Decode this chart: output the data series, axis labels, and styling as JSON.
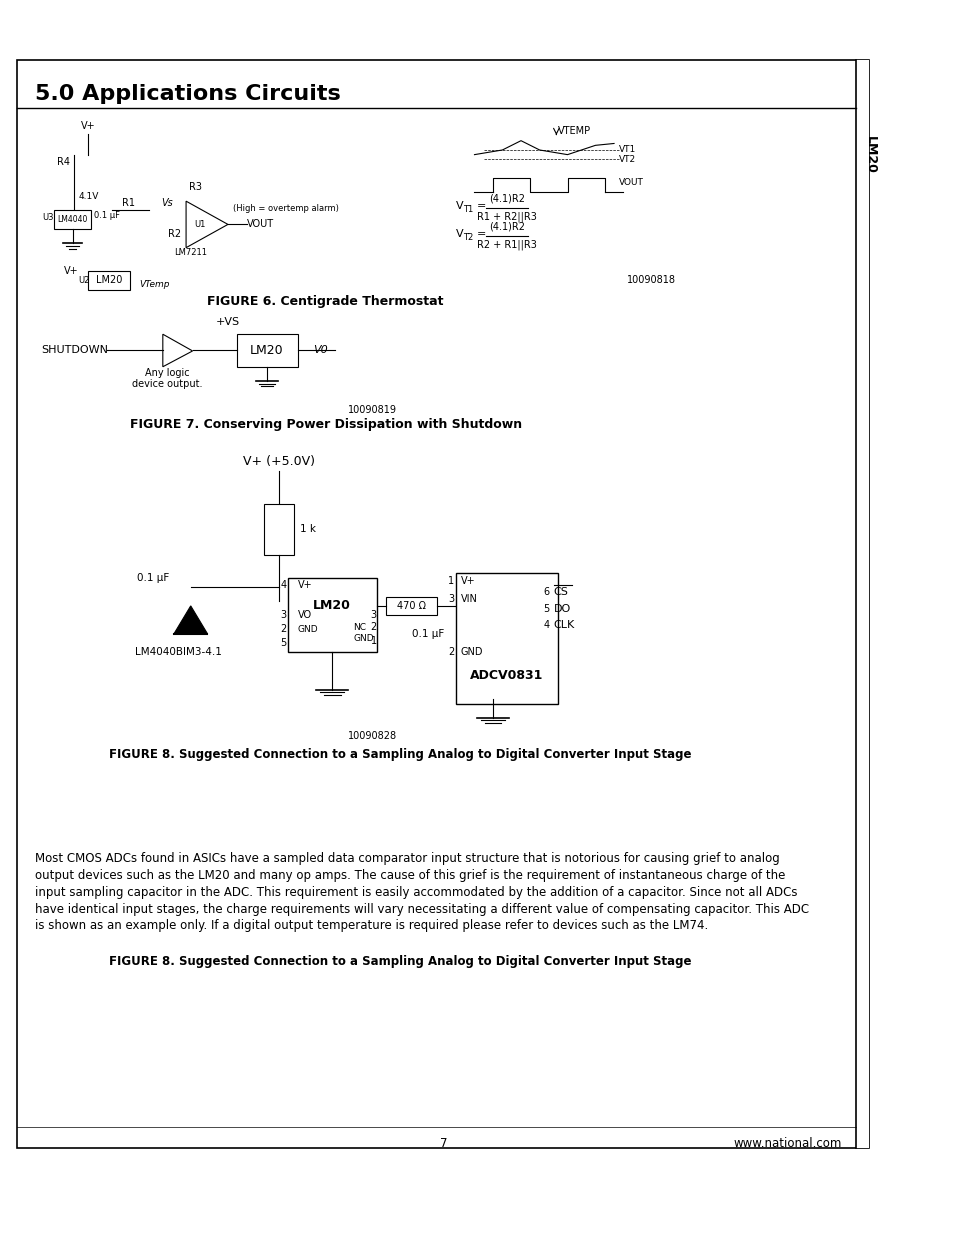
{
  "title": "5.0 Applications Circuits",
  "sidebar_text": "LM20",
  "page_number": "7",
  "website": "www.national.com",
  "fig6_caption": "FIGURE 6. Centigrade Thermostat",
  "fig7_caption": "FIGURE 7. Conserving Power Dissipation with Shutdown",
  "fig8_caption": "FIGURE 8. Suggested Connection to a Sampling Analog to Digital Converter Input Stage",
  "body_text": "Most CMOS ADCs found in ASICs have a sampled data comparator input structure that is notorious for causing grief to analog output devices such as the LM20 and many op amps. The cause of this grief is the requirement of instantaneous charge of the input sampling capacitor in the ADC. This requirement is easily accommodated by the addition of a capacitor. Since not all ADCs have identical input stages, the charge requirements will vary necessitating a different value of compensating capacitor. This ADC is shown as an example only. If a digital output temperature is required please refer to devices such as the LM74.",
  "fig6_id": "10090818",
  "fig7_id": "10090819",
  "fig8_id": "10090828",
  "bg_color": "#ffffff",
  "border_color": "#000000",
  "text_color": "#000000"
}
